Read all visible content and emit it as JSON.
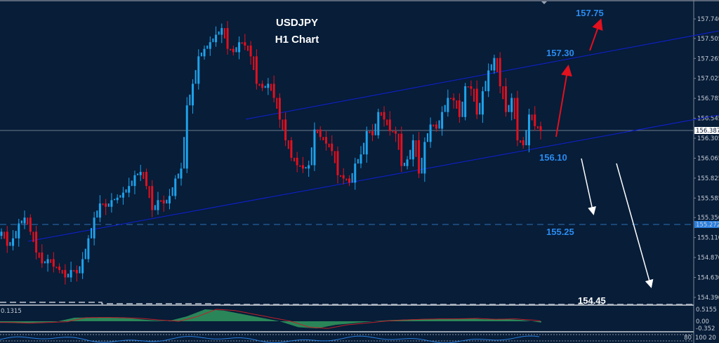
{
  "chart_data": {
    "type": "candlestick",
    "title": "USDJPY",
    "subtitle": "H1 Chart",
    "symbol": "USDJPY",
    "timeframe": "H1",
    "ylim": [
      154.35,
      157.85
    ],
    "y_ticks": [
      "157.740",
      "157.505",
      "157.265",
      "157.025",
      "156.785",
      "156.545",
      "156.305",
      "156.065",
      "155.825",
      "155.585",
      "155.350",
      "155.110",
      "154.870",
      "154.630",
      "154.390"
    ],
    "current_price": "156.387",
    "marked_level": "155.272",
    "grid": false,
    "colors": {
      "background": "#071d38",
      "up": "#1ea3ec",
      "down": "#e3101e",
      "channel": "#1020d8",
      "annotation": "#2a8cf0",
      "arrow_up": "#e3101e",
      "arrow_down": "#ffffff"
    },
    "close": [
      155.18,
      155.01,
      155.1,
      155.28,
      155.35,
      155.18,
      154.93,
      154.8,
      154.85,
      154.76,
      154.72,
      154.63,
      154.72,
      154.68,
      154.85,
      155.1,
      155.35,
      155.52,
      155.48,
      155.56,
      155.59,
      155.65,
      155.73,
      155.86,
      155.9,
      155.73,
      155.44,
      155.56,
      155.52,
      155.61,
      155.82,
      155.94,
      156.7,
      156.96,
      157.29,
      157.38,
      157.46,
      157.55,
      157.63,
      157.38,
      157.34,
      157.46,
      157.42,
      157.29,
      156.96,
      156.91,
      156.96,
      156.79,
      156.53,
      156.28,
      156.07,
      155.98,
      155.94,
      155.98,
      156.41,
      156.32,
      156.24,
      156.15,
      155.86,
      155.82,
      155.77,
      156.0,
      156.11,
      156.39,
      156.34,
      156.62,
      156.53,
      156.39,
      156.36,
      155.97,
      156.05,
      156.28,
      155.88,
      156.26,
      156.47,
      156.42,
      156.62,
      156.79,
      156.76,
      156.56,
      156.93,
      156.9,
      156.59,
      156.87,
      157.12,
      157.27,
      156.93,
      156.62,
      156.79,
      156.28,
      156.22,
      156.59,
      156.45,
      156.39
    ],
    "channel": {
      "upper": [
        156.6,
        157.5
      ],
      "lower": [
        155.18,
        156.55
      ]
    },
    "annotations": [
      {
        "label": "157.75",
        "color": "#2a8cf0"
      },
      {
        "label": "157.30",
        "color": "#2a8cf0"
      },
      {
        "label": "156.10",
        "color": "#2a8cf0"
      },
      {
        "label": "155.25",
        "color": "#2a8cf0"
      },
      {
        "label": "154.45",
        "color": "#ffffff"
      }
    ],
    "oscillator": {
      "value_label": "0.1315",
      "ticks": [
        "0.5155",
        "0.00",
        "-0.352"
      ],
      "histogram": [
        -0.05,
        -0.08,
        -0.05,
        -0.02,
        0.15,
        0.16,
        0.15,
        0.12,
        0.05,
        0.0,
        0.2,
        0.5,
        0.45,
        0.3,
        0.15,
        0.0,
        -0.25,
        -0.3,
        -0.15,
        -0.08,
        0.0,
        0.05,
        0.08,
        0.1,
        0.1,
        0.12,
        0.08,
        0.1,
        0.05,
        -0.05
      ]
    },
    "lower_panel": {
      "ticks": [
        "100",
        "20",
        "80"
      ]
    }
  }
}
